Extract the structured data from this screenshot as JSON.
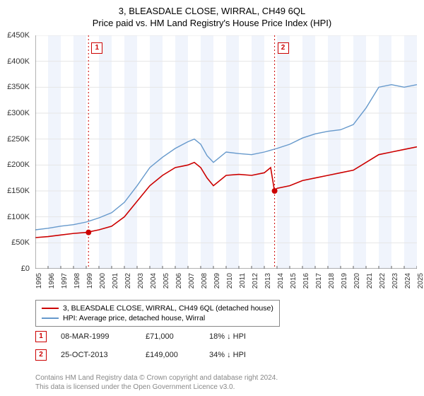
{
  "title": "3, BLEASDALE CLOSE, WIRRAL, CH49 6QL",
  "subtitle": "Price paid vs. HM Land Registry's House Price Index (HPI)",
  "chart": {
    "type": "line",
    "background_color": "#ffffff",
    "alt_band_color": "#f0f4fc",
    "grid_color": "#e6e6e6",
    "axis_color": "#666666",
    "ylim": [
      0,
      450000
    ],
    "ytick_step": 50000,
    "ytick_labels": [
      "£0",
      "£50K",
      "£100K",
      "£150K",
      "£200K",
      "£250K",
      "£300K",
      "£350K",
      "£400K",
      "£450K"
    ],
    "xlim": [
      1995,
      2025
    ],
    "xtick_step": 1,
    "xtick_labels": [
      "1995",
      "1996",
      "1997",
      "1998",
      "1999",
      "2000",
      "2001",
      "2002",
      "2003",
      "2004",
      "2005",
      "2006",
      "2007",
      "2008",
      "2009",
      "2010",
      "2011",
      "2012",
      "2013",
      "2014",
      "2015",
      "2016",
      "2017",
      "2018",
      "2019",
      "2020",
      "2021",
      "2022",
      "2023",
      "2024",
      "2025"
    ],
    "label_fontsize": 11,
    "series": [
      {
        "name": "price_paid",
        "color": "#cc0000",
        "line_width": 1.6,
        "x": [
          1995,
          1996,
          1997,
          1998,
          1999,
          2000,
          2001,
          2002,
          2003,
          2004,
          2005,
          2006,
          2007,
          2007.5,
          2008,
          2008.5,
          2009,
          2010,
          2011,
          2012,
          2013,
          2013.5,
          2013.8,
          2014,
          2015,
          2016,
          2017,
          2018,
          2019,
          2020,
          2021,
          2022,
          2023,
          2024,
          2025
        ],
        "y": [
          60000,
          62000,
          65000,
          68000,
          70000,
          75000,
          82000,
          100000,
          130000,
          160000,
          180000,
          195000,
          200000,
          205000,
          195000,
          175000,
          160000,
          180000,
          182000,
          180000,
          185000,
          195000,
          150000,
          155000,
          160000,
          170000,
          175000,
          180000,
          185000,
          190000,
          205000,
          220000,
          225000,
          230000,
          235000
        ]
      },
      {
        "name": "hpi",
        "color": "#6699cc",
        "line_width": 1.4,
        "x": [
          1995,
          1996,
          1997,
          1998,
          1999,
          2000,
          2001,
          2002,
          2003,
          2004,
          2005,
          2006,
          2007,
          2007.5,
          2008,
          2008.5,
          2009,
          2010,
          2011,
          2012,
          2013,
          2014,
          2015,
          2016,
          2017,
          2018,
          2019,
          2020,
          2021,
          2022,
          2023,
          2024,
          2025
        ],
        "y": [
          75000,
          78000,
          82000,
          85000,
          90000,
          98000,
          108000,
          128000,
          160000,
          195000,
          215000,
          232000,
          245000,
          250000,
          240000,
          218000,
          205000,
          225000,
          222000,
          220000,
          225000,
          232000,
          240000,
          252000,
          260000,
          265000,
          268000,
          278000,
          310000,
          350000,
          355000,
          350000,
          355000
        ]
      }
    ],
    "sale_markers": [
      {
        "id": "1",
        "x": 1999.18,
        "marker_color": "#cc0000",
        "point_y": 70000
      },
      {
        "id": "2",
        "x": 2013.81,
        "marker_color": "#cc0000",
        "point_y": 150000
      }
    ]
  },
  "legend": {
    "items": [
      {
        "color": "#cc0000",
        "label": "3, BLEASDALE CLOSE, WIRRAL, CH49 6QL (detached house)"
      },
      {
        "color": "#6699cc",
        "label": "HPI: Average price, detached house, Wirral"
      }
    ]
  },
  "sales": [
    {
      "marker": "1",
      "date": "08-MAR-1999",
      "price": "£71,000",
      "diff": "18% ↓ HPI"
    },
    {
      "marker": "2",
      "date": "25-OCT-2013",
      "price": "£149,000",
      "diff": "34% ↓ HPI"
    }
  ],
  "footer_line1": "Contains HM Land Registry data © Crown copyright and database right 2024.",
  "footer_line2": "This data is licensed under the Open Government Licence v3.0."
}
